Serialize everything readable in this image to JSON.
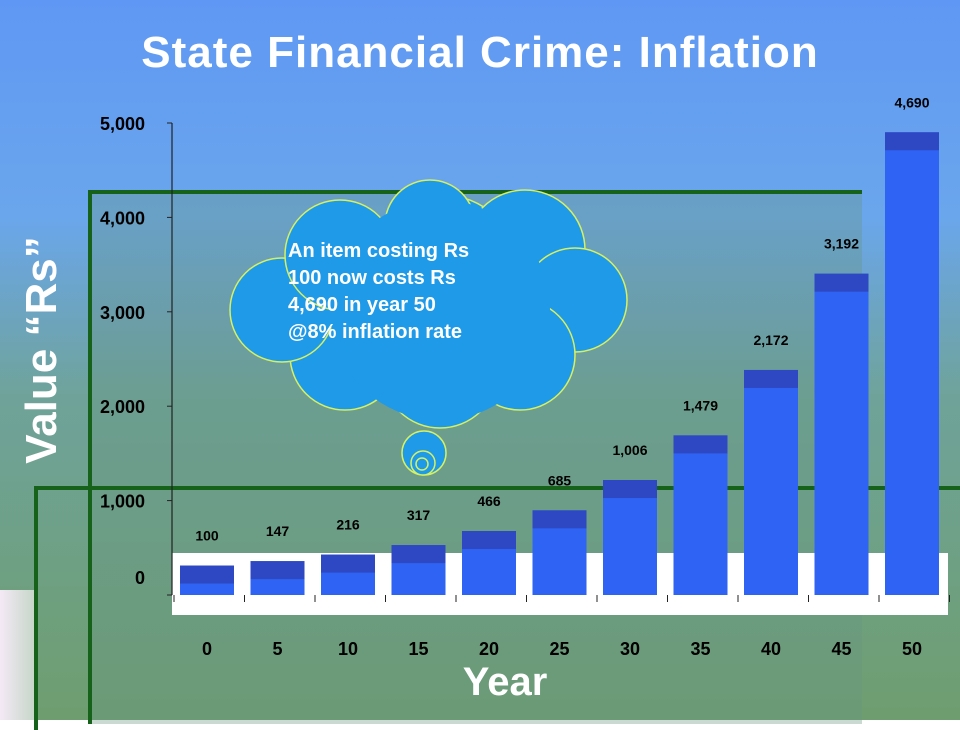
{
  "title": "State Financial Crime: Inflation",
  "callout": {
    "lines": [
      "An item costing Rs",
      "100 now costs Rs",
      "4,690 in year 50",
      "@8% inflation rate"
    ]
  },
  "chart_data": {
    "type": "bar",
    "title": "State Financial Crime: Inflation",
    "xlabel": "Year",
    "ylabel": "Value “Rs”",
    "categories": [
      "0",
      "5",
      "10",
      "15",
      "20",
      "25",
      "30",
      "35",
      "40",
      "45",
      "50"
    ],
    "values": [
      100,
      147,
      216,
      317,
      466,
      685,
      1006,
      1479,
      2172,
      3192,
      4690
    ],
    "data_labels": [
      "100",
      "147",
      "216",
      "317",
      "466",
      "685",
      "1,006",
      "1,479",
      "2,172",
      "3,192",
      "4,690"
    ],
    "yticks": [
      "0",
      "1,000",
      "2,000",
      "3,000",
      "4,000",
      "5,000"
    ],
    "ylim": [
      0,
      5000
    ],
    "grid": false,
    "legend": "none",
    "colors": {
      "bar": "#2f63f3",
      "bar_cap": "#2e48c4",
      "plot_bg": "#ffffff"
    }
  }
}
